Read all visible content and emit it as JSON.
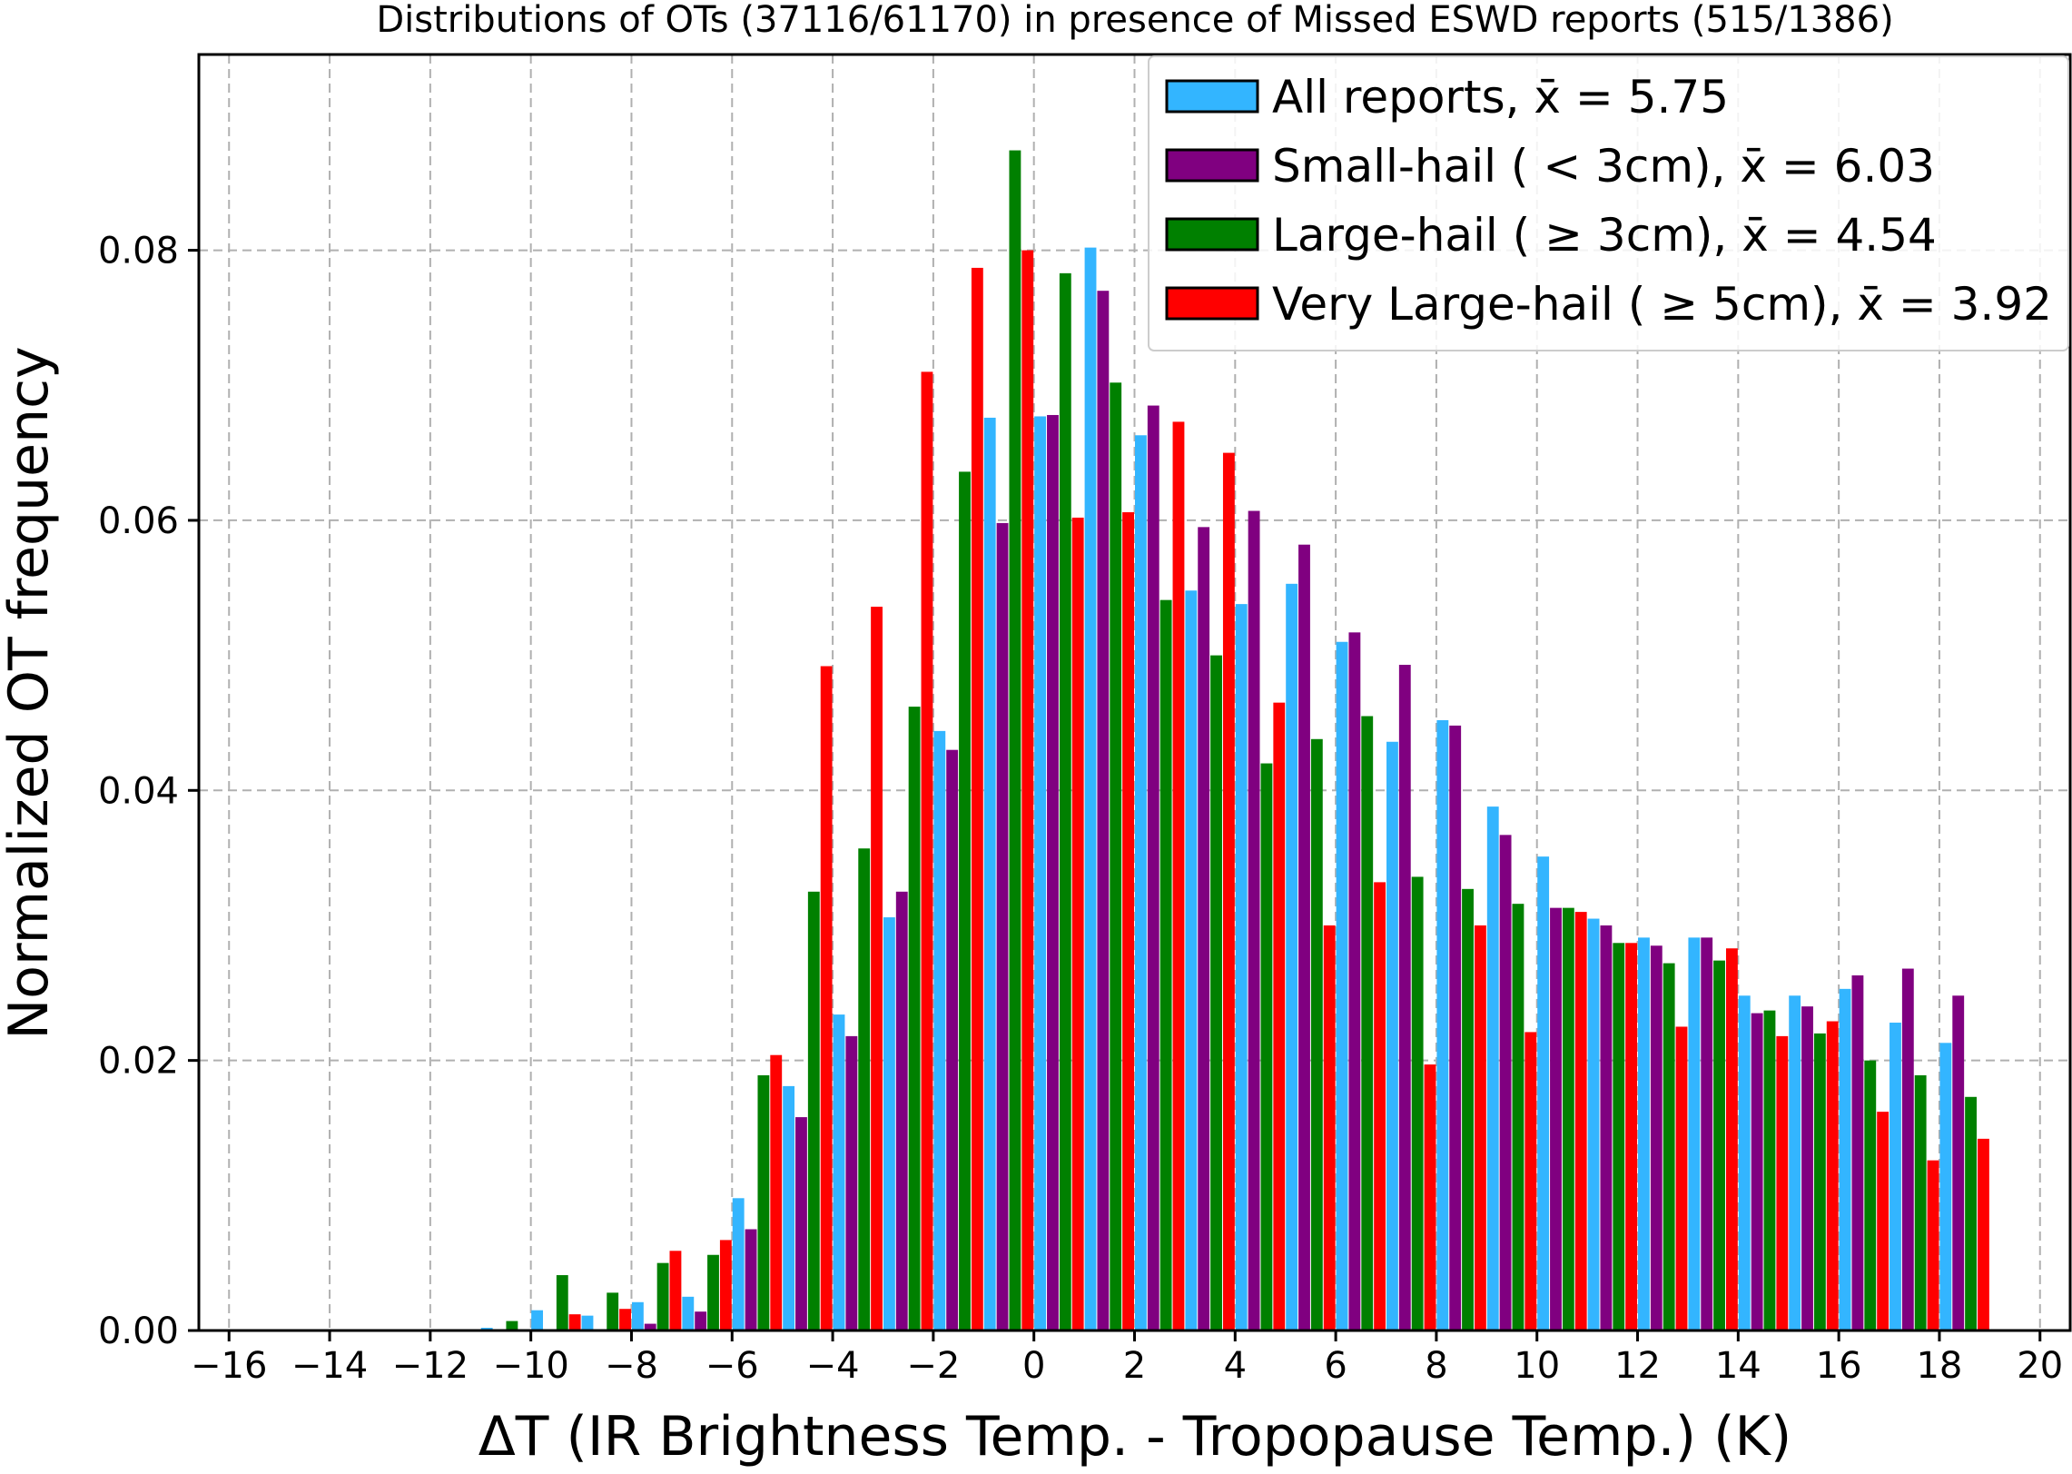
{
  "chart_data": {
    "type": "bar",
    "title": "Distributions of OTs (37116/61170) in presence of Missed ESWD reports (515/1386)",
    "xlabel": "ΔT (IR Brightness Temp. - Tropopause Temp.) (K)",
    "ylabel": "Normalized OT frequency",
    "xlim": [
      -16.6,
      20.6
    ],
    "ylim": [
      0,
      0.0945
    ],
    "xticks": [
      -16,
      -14,
      -12,
      -10,
      -8,
      -6,
      -4,
      -2,
      0,
      2,
      4,
      6,
      8,
      10,
      12,
      14,
      16,
      18,
      20
    ],
    "xtick_labels": [
      "−16",
      "−14",
      "−12",
      "−10",
      "−8",
      "−6",
      "−4",
      "−2",
      "0",
      "2",
      "4",
      "6",
      "8",
      "10",
      "12",
      "14",
      "16",
      "18",
      "20"
    ],
    "yticks": [
      0,
      0.02,
      0.04,
      0.06,
      0.08
    ],
    "ytick_labels": [
      "0.00",
      "0.02",
      "0.04",
      "0.06",
      "0.08"
    ],
    "grid": true,
    "legend_position": "top-right",
    "bins": [
      -11,
      -10,
      -9,
      -8,
      -7,
      -6,
      -5,
      -4,
      -3,
      -2,
      -1,
      0,
      1,
      2,
      3,
      4,
      5,
      6,
      7,
      8,
      9,
      10,
      11,
      12,
      13,
      14,
      15,
      16,
      17,
      18
    ],
    "series": [
      {
        "name": "All reports, x̄ = 5.75",
        "color": "#33b5ff",
        "values": [
          0.0002,
          0.0015,
          0.0011,
          0.0021,
          0.0025,
          0.0098,
          0.0181,
          0.0234,
          0.0306,
          0.0444,
          0.0676,
          0.0677,
          0.0802,
          0.0663,
          0.0548,
          0.0538,
          0.0553,
          0.051,
          0.0436,
          0.0452,
          0.0388,
          0.0351,
          0.0305,
          0.0291,
          0.0291,
          0.0248,
          0.0248,
          0.0253,
          0.0228,
          0.0213
        ]
      },
      {
        "name": "Small-hail ( < 3cm), x̄ = 6.03",
        "color": "#800080",
        "values": [
          0,
          0,
          0,
          0.0005,
          0.0014,
          0.0075,
          0.0158,
          0.0218,
          0.0325,
          0.043,
          0.0598,
          0.0678,
          0.077,
          0.0685,
          0.0595,
          0.0607,
          0.0582,
          0.0517,
          0.0493,
          0.0448,
          0.0367,
          0.0313,
          0.03,
          0.0285,
          0.0291,
          0.0235,
          0.024,
          0.0263,
          0.0268,
          0.0248
        ]
      },
      {
        "name": "Large-hail ( ≥ 3cm), x̄ = 4.54",
        "color": "#008000",
        "values": [
          0.0007,
          0.0041,
          0.0028,
          0.005,
          0.0056,
          0.0189,
          0.0325,
          0.0357,
          0.0462,
          0.0636,
          0.0874,
          0.0783,
          0.0702,
          0.0541,
          0.05,
          0.042,
          0.0438,
          0.0455,
          0.0336,
          0.0327,
          0.0316,
          0.0313,
          0.0287,
          0.0272,
          0.0274,
          0.0237,
          0.022,
          0.02,
          0.0189,
          0.0173
        ]
      },
      {
        "name": "Very Large-hail ( ≥ 5cm), x̄ = 3.92",
        "color": "#ff0000",
        "values": [
          0,
          0.0012,
          0.0016,
          0.0059,
          0.0067,
          0.0204,
          0.0492,
          0.0536,
          0.071,
          0.0787,
          0.08,
          0.0602,
          0.0606,
          0.0673,
          0.065,
          0.0465,
          0.03,
          0.0332,
          0.0197,
          0.03,
          0.0221,
          0.031,
          0.0287,
          0.0225,
          0.0283,
          0.0218,
          0.0229,
          0.0162,
          0.0126,
          0.0142
        ]
      }
    ]
  }
}
